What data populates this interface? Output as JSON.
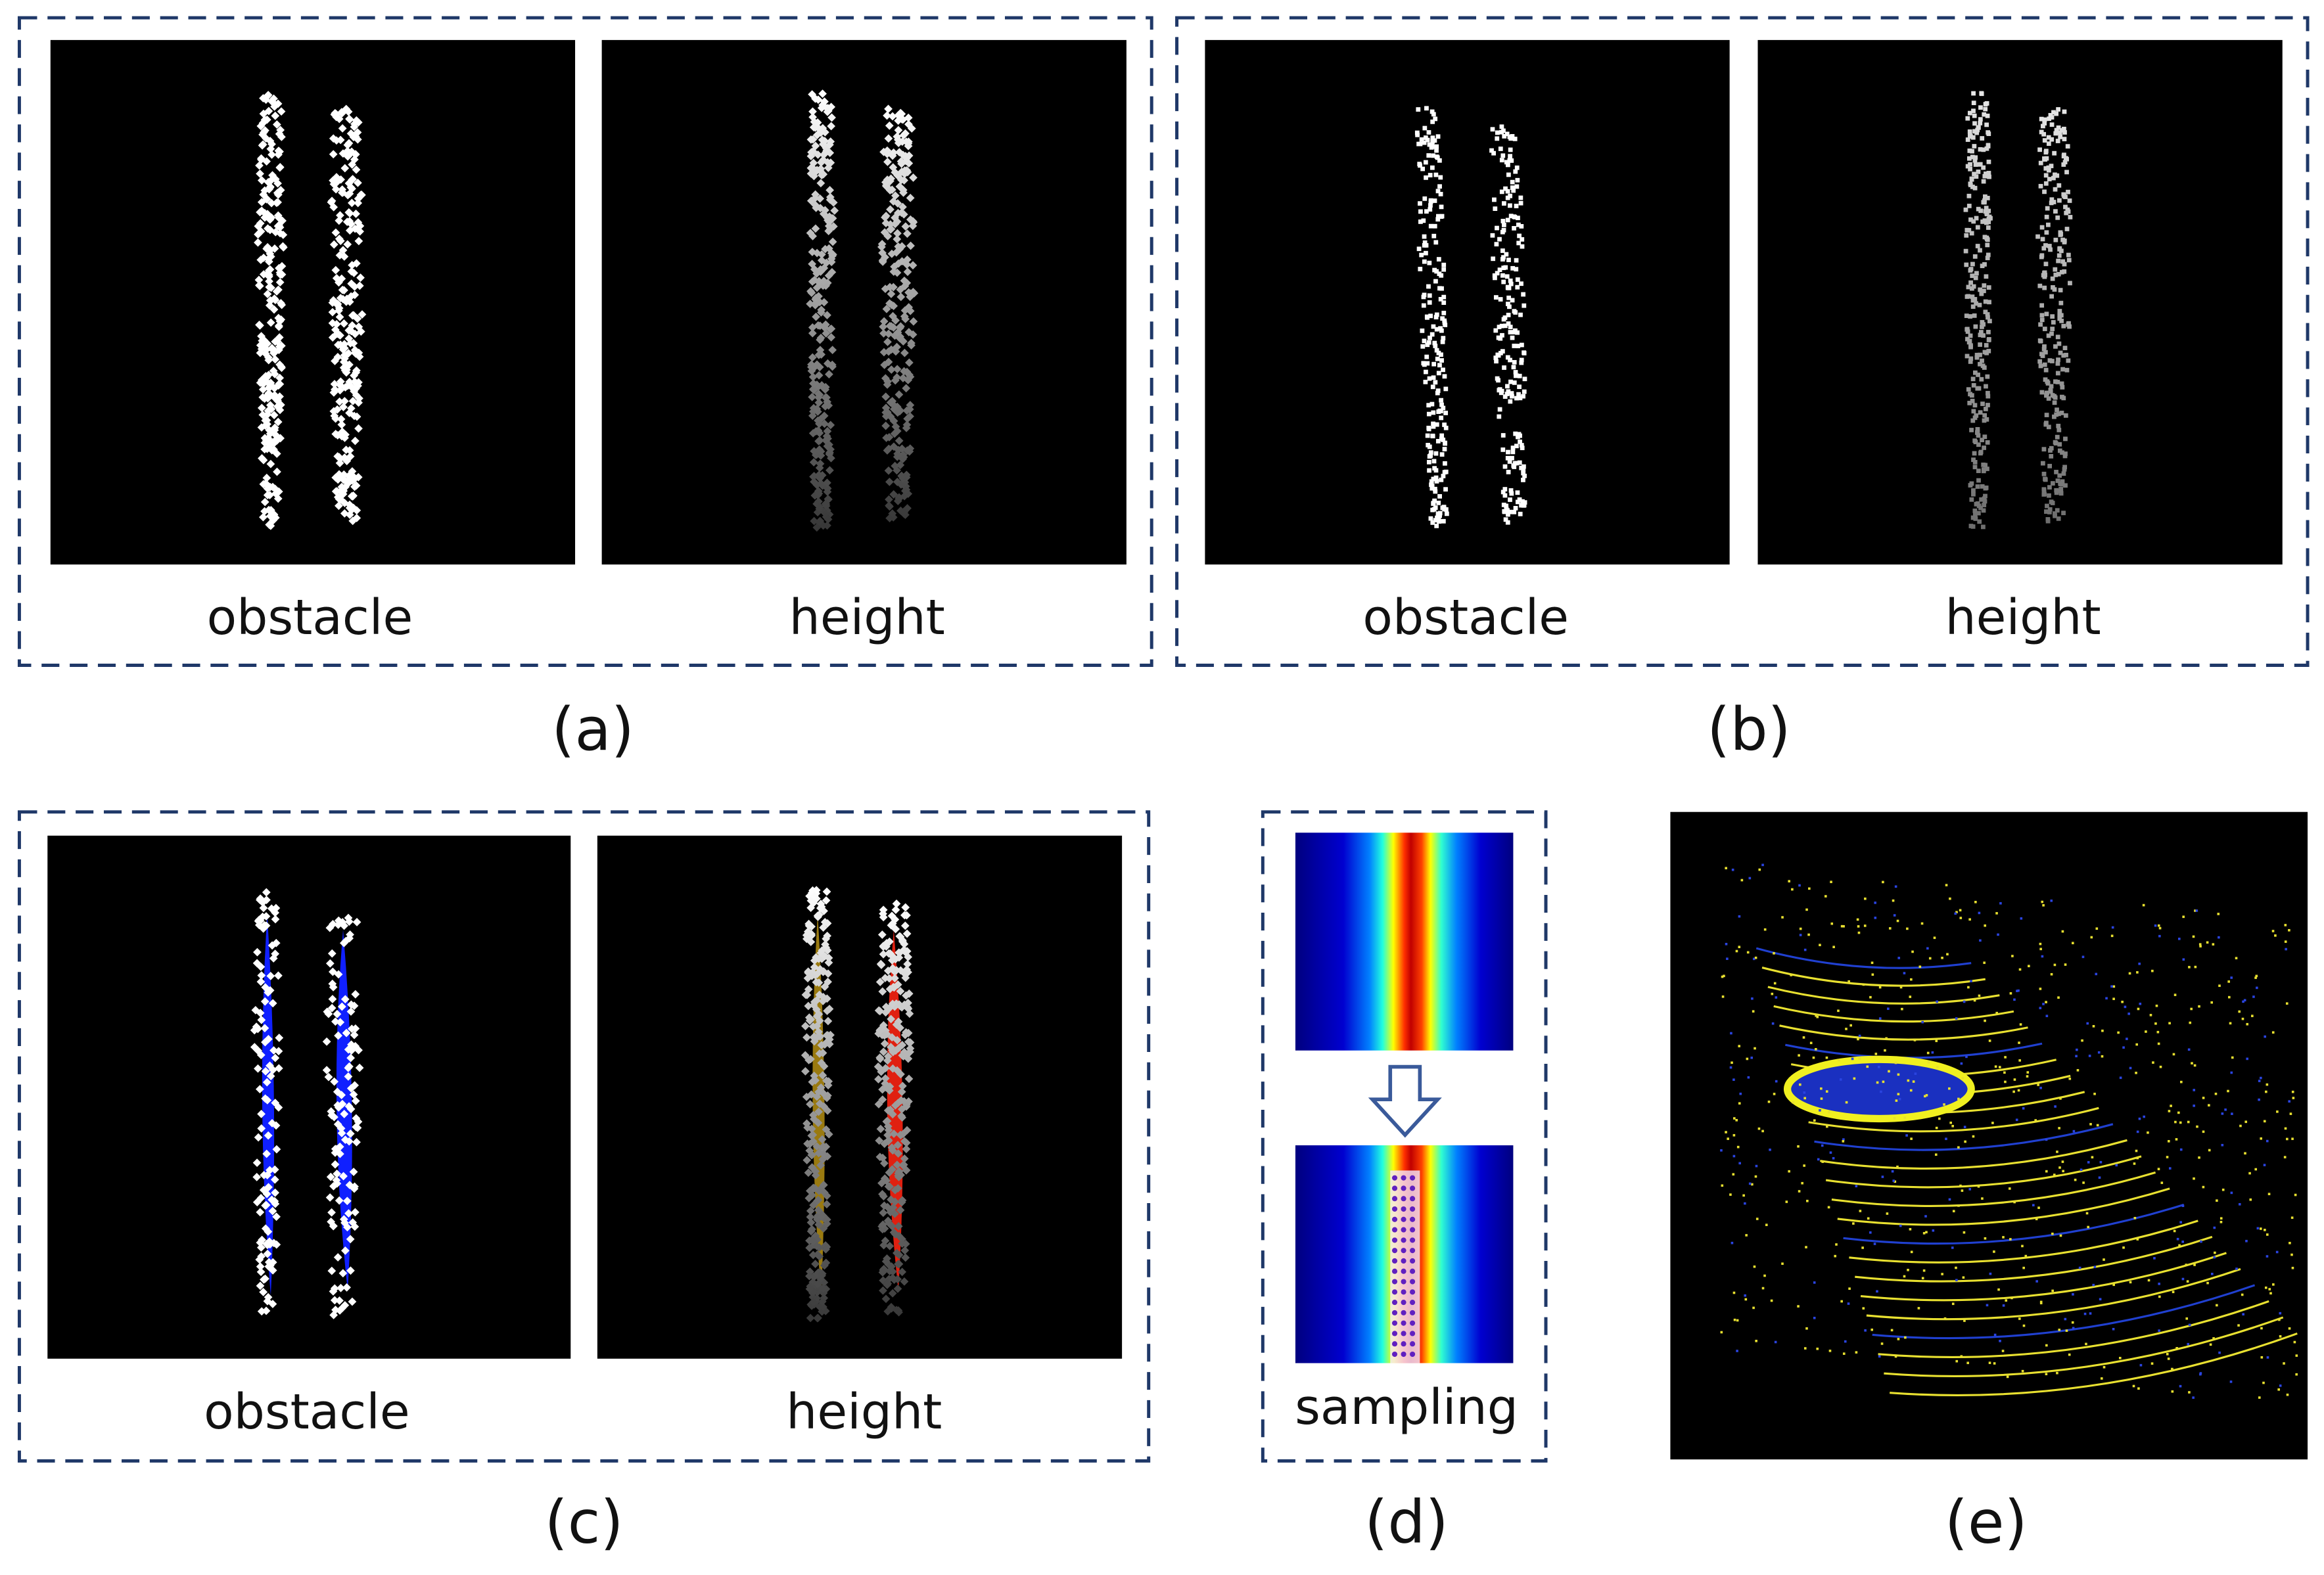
{
  "panels": [
    {
      "caption": "(a)",
      "labels": [
        "obstacle",
        "height"
      ]
    },
    {
      "caption": "(b)",
      "labels": [
        "obstacle",
        "height"
      ]
    },
    {
      "caption": "(c)",
      "labels": [
        "obstacle",
        "height"
      ]
    },
    {
      "caption": "(d)",
      "labels": [
        "sampling"
      ]
    },
    {
      "caption": "(e)"
    }
  ]
}
